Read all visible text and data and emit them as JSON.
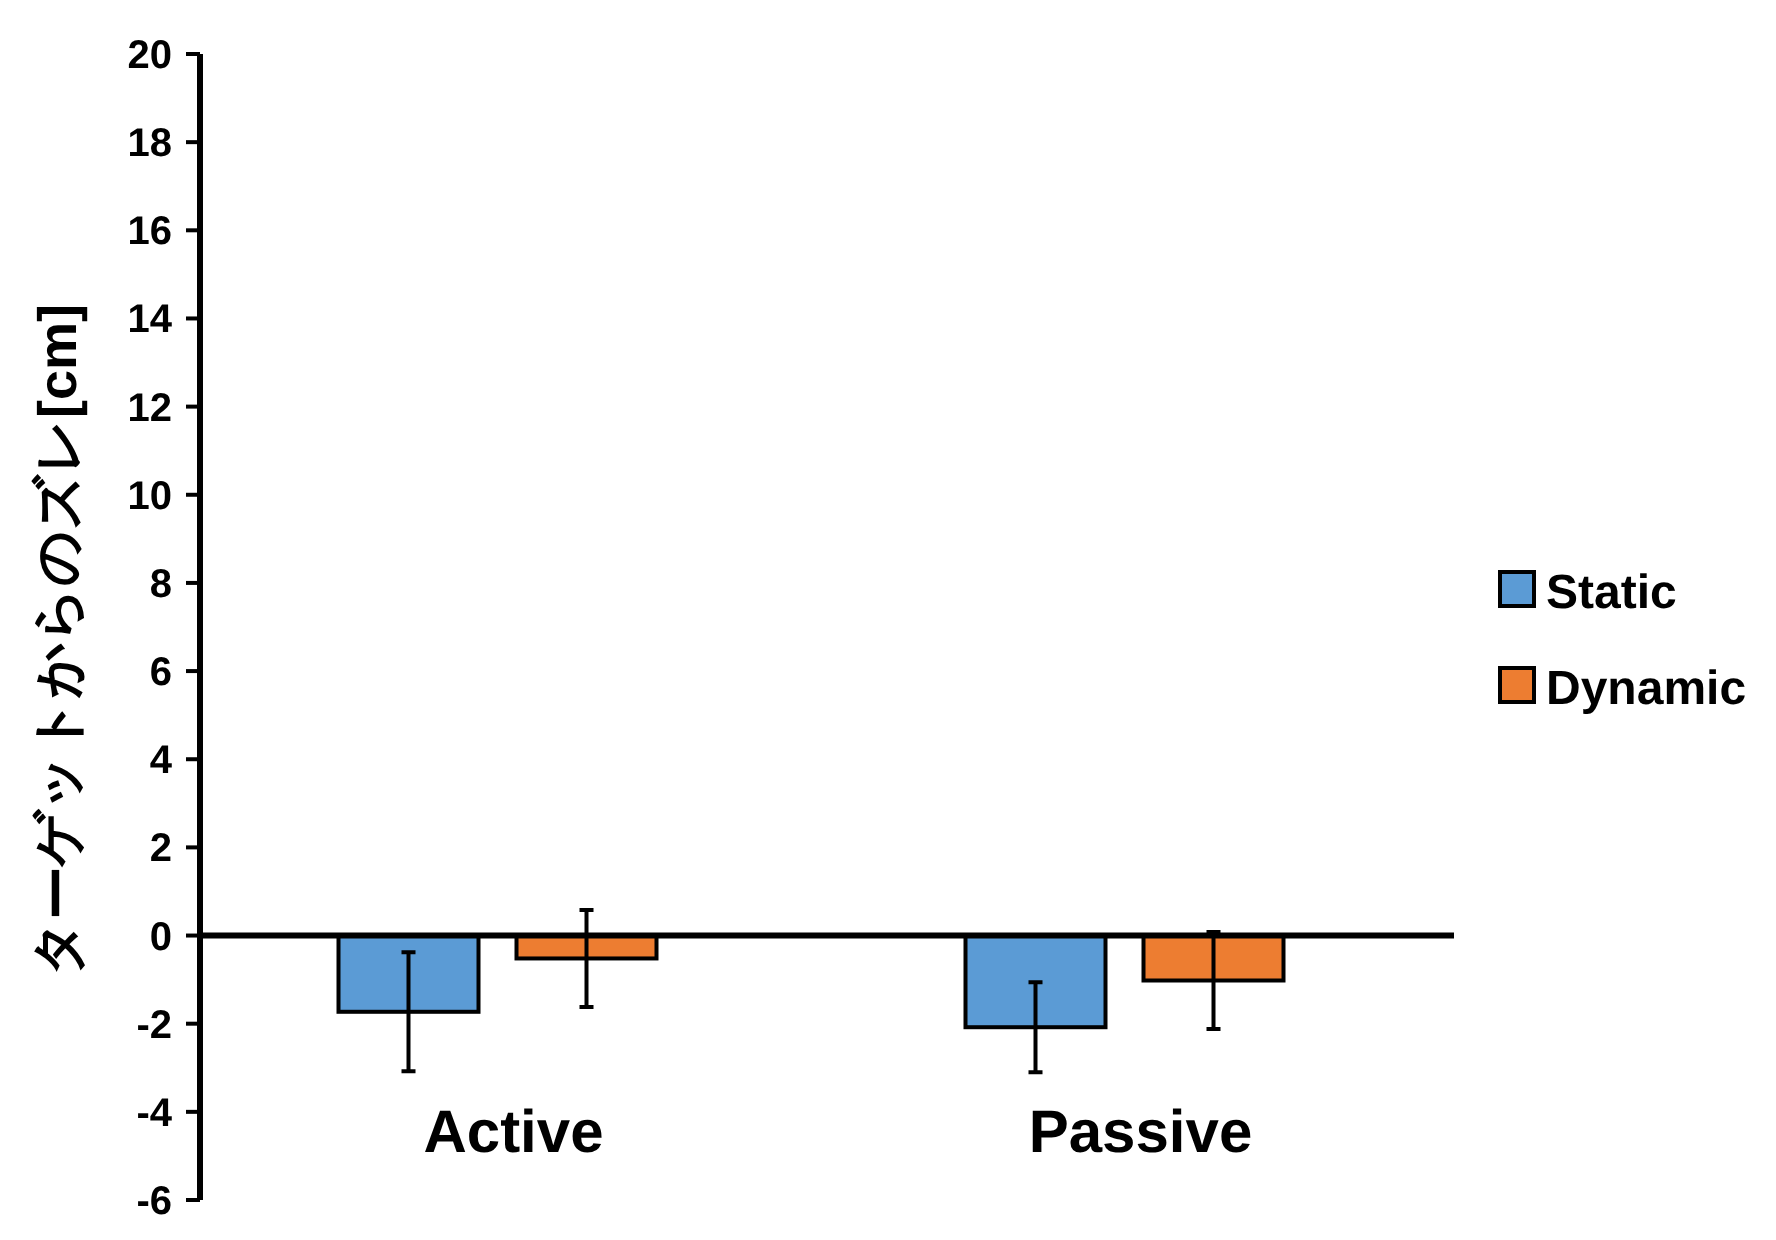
{
  "chart_data": {
    "type": "bar",
    "ylabel": "ターゲットからのズレ[cm]",
    "categories": [
      "Active",
      "Passive"
    ],
    "series": [
      {
        "name": "Static",
        "color": "#5b9bd5",
        "values": [
          -1.73,
          -2.08
        ],
        "errors": [
          1.35,
          1.02
        ]
      },
      {
        "name": "Dynamic",
        "color": "#ed7d31",
        "values": [
          -0.52,
          -1.02
        ],
        "errors": [
          1.1,
          1.1
        ]
      }
    ],
    "ylim": [
      -6,
      20
    ],
    "yticks": [
      -6,
      -4,
      -2,
      0,
      2,
      4,
      6,
      8,
      10,
      12,
      14,
      16,
      18,
      20
    ],
    "legend": "right"
  }
}
